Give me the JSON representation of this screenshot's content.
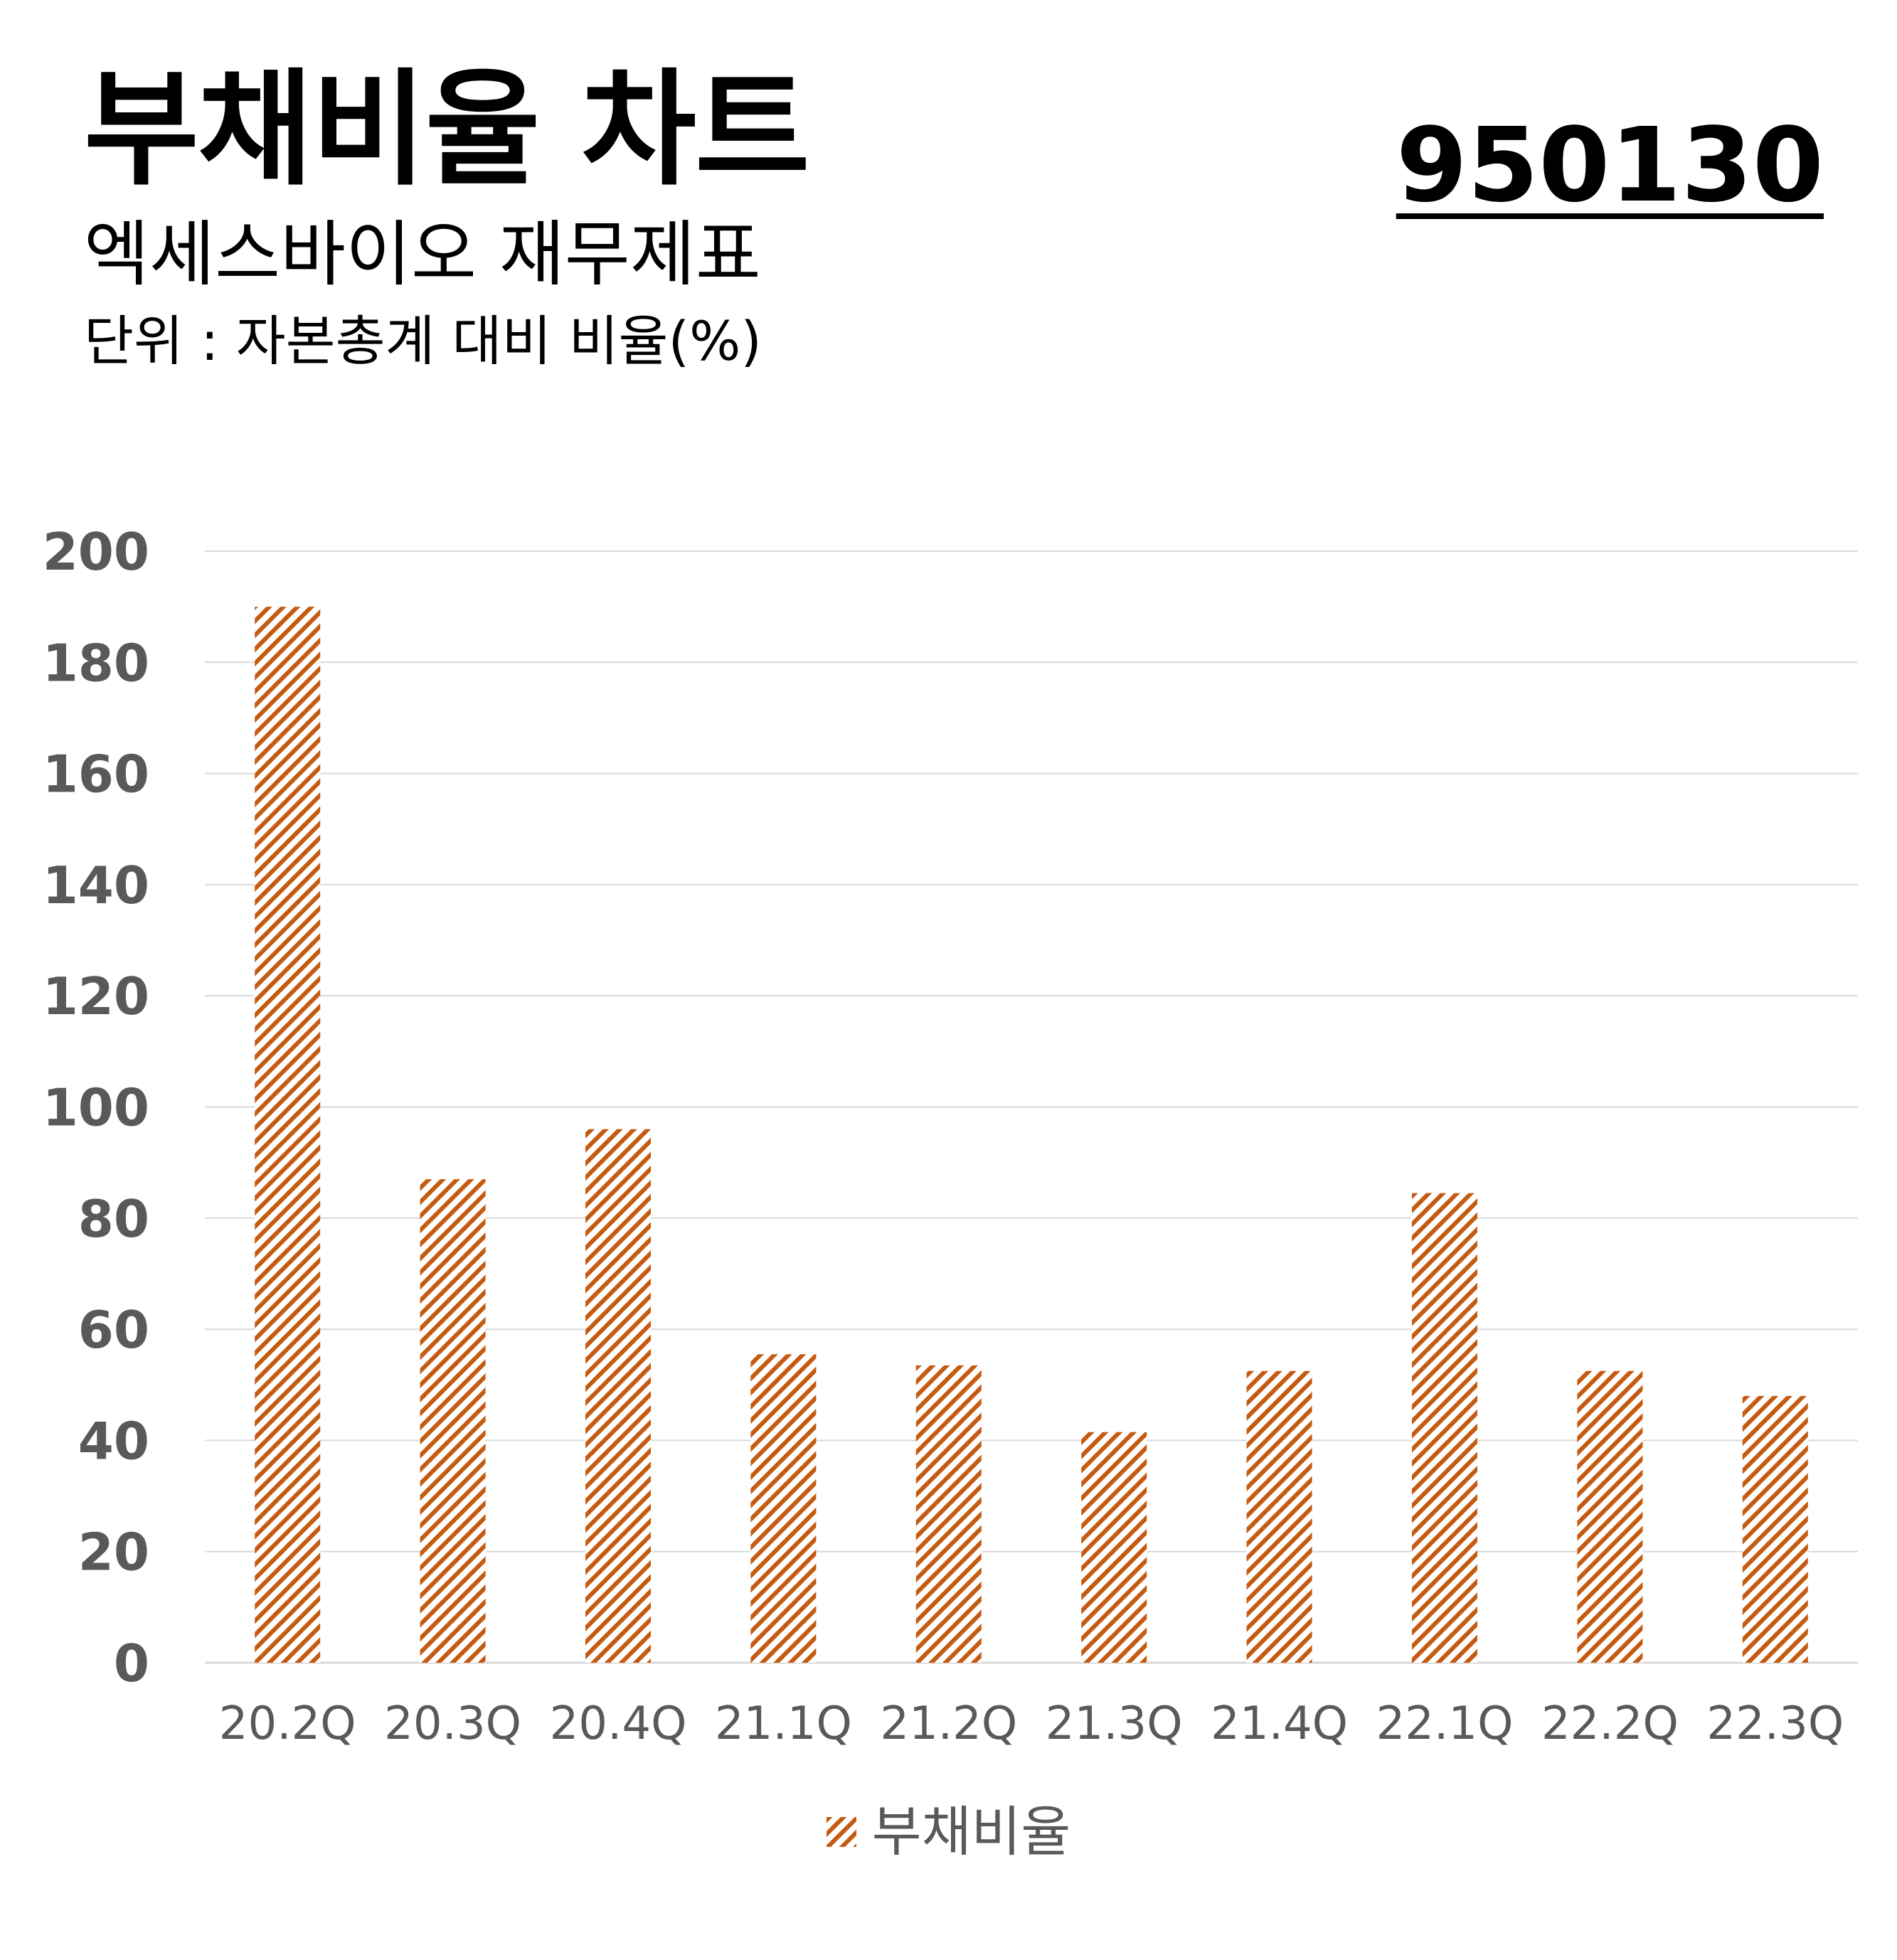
{
  "header": {
    "title": "부채비율 차트",
    "subtitle": "엑세스바이오 재무제표",
    "unit_note": "단위 : 자본총계 대비 비율(%)",
    "stock_code": "950130"
  },
  "colors": {
    "bar_stripe": "#C55A11",
    "grid": "#D9D9D9",
    "axis_text": "#595959"
  },
  "chart_data": {
    "type": "bar",
    "title": "",
    "xlabel": "",
    "ylabel": "",
    "categories": [
      "20.2Q",
      "20.3Q",
      "20.4Q",
      "21.1Q",
      "21.2Q",
      "21.3Q",
      "21.4Q",
      "22.1Q",
      "22.2Q",
      "22.3Q"
    ],
    "series": [
      {
        "name": "부채비율",
        "values": [
          190,
          87,
          96,
          55.5,
          53.5,
          41.5,
          52.5,
          84.5,
          52.5,
          48
        ]
      }
    ],
    "ylim": [
      0,
      200
    ],
    "yticks": [
      "200",
      "180",
      "160",
      "140",
      "120",
      "100",
      "80",
      "60",
      "40",
      "20",
      "0"
    ],
    "grid": true,
    "legend_position": "bottom",
    "bar_fill": "diagonal-stripes"
  }
}
